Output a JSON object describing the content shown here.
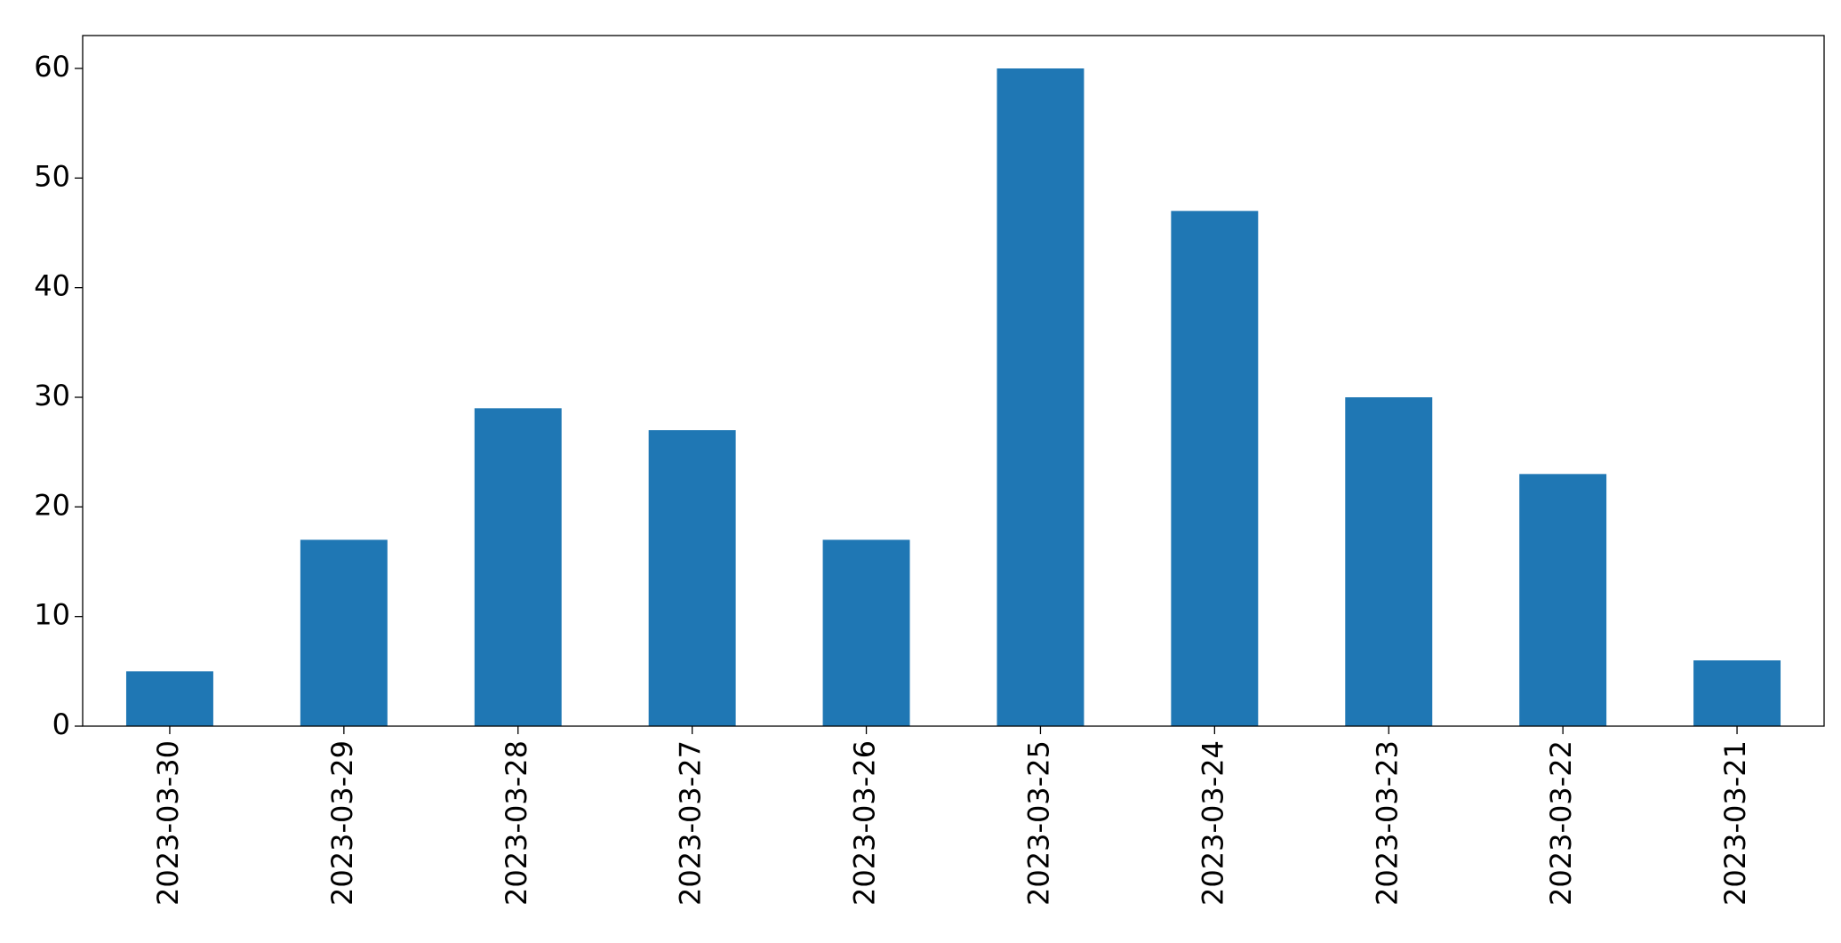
{
  "chart_data": {
    "type": "bar",
    "categories": [
      "2023-03-30",
      "2023-03-29",
      "2023-03-28",
      "2023-03-27",
      "2023-03-26",
      "2023-03-25",
      "2023-03-24",
      "2023-03-23",
      "2023-03-22",
      "2023-03-21"
    ],
    "values": [
      5,
      17,
      29,
      27,
      17,
      60,
      47,
      30,
      23,
      6
    ],
    "color": "#1f77b4",
    "ylim": [
      0,
      63
    ],
    "yticks": [
      0,
      10,
      20,
      30,
      40,
      50,
      60
    ],
    "grid": false
  }
}
